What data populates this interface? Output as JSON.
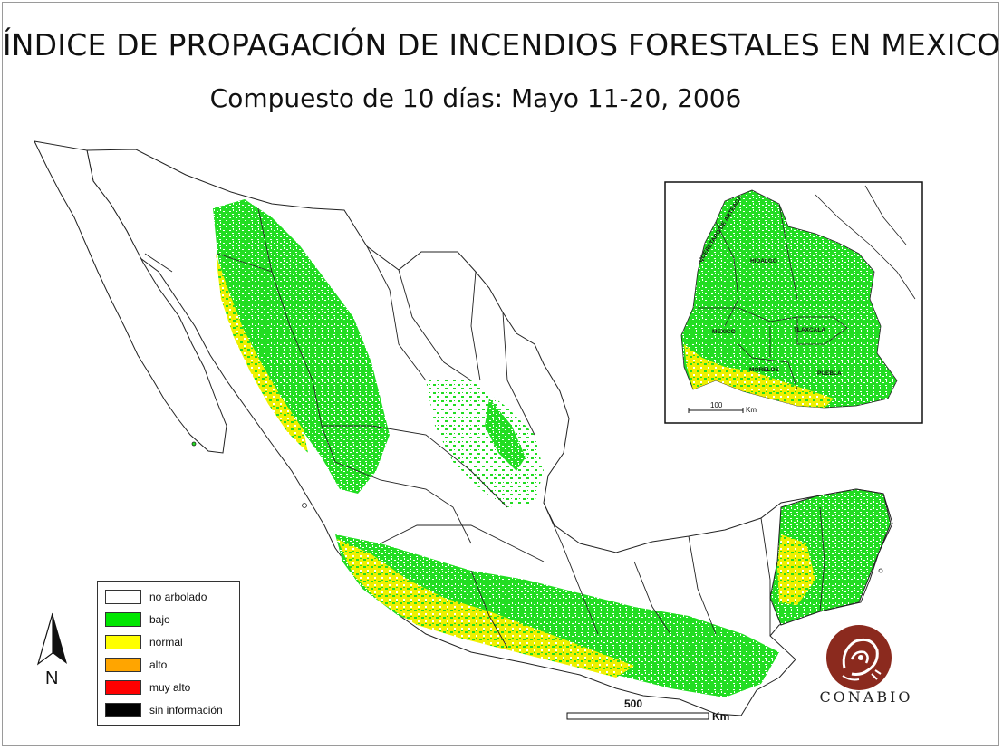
{
  "title": "ÍNDICE DE PROPAGACIÓN DE INCENDIOS FORESTALES EN MEXICO",
  "subtitle": "Compuesto de 10 días: Mayo 11-20, 2006",
  "legend": {
    "items": [
      {
        "label": "no arbolado",
        "color": "#ffffff"
      },
      {
        "label": "bajo",
        "color": "#00e600"
      },
      {
        "label": "normal",
        "color": "#ffff00"
      },
      {
        "label": "alto",
        "color": "#ffa500"
      },
      {
        "label": "muy alto",
        "color": "#ff0000"
      },
      {
        "label": "sin información",
        "color": "#000000"
      }
    ]
  },
  "north_arrow": {
    "letter": "N"
  },
  "scale_bar": {
    "value": "500",
    "unit": "Km"
  },
  "inset": {
    "states": [
      "QUERETARO DE ARTEAGA",
      "HIDALGO",
      "MEXICO",
      "TLAXCALA",
      "MORELOS",
      "PUEBLA"
    ],
    "scale_value": "100",
    "scale_unit": "Km"
  },
  "logo": {
    "text": "CONABIO",
    "color": "#8b2a1e"
  }
}
